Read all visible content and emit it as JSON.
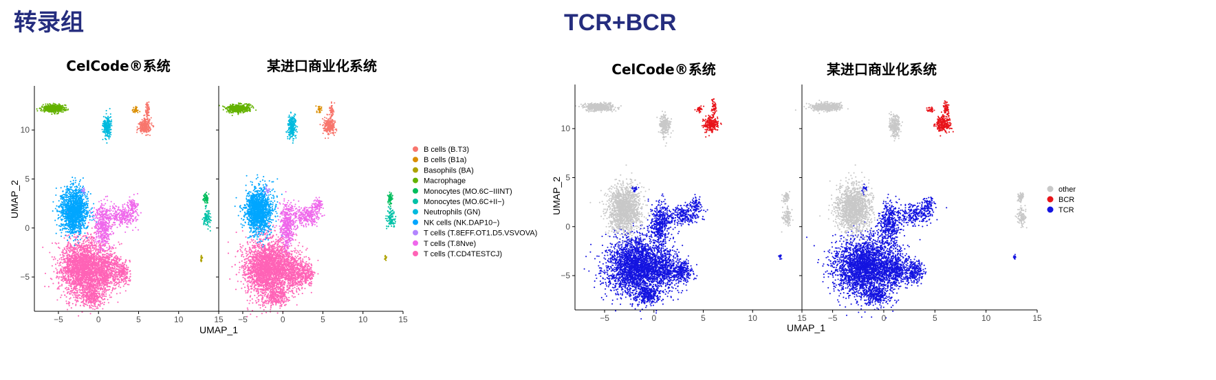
{
  "page": {
    "left_heading": "转录组",
    "right_heading": "TCR+BCR"
  },
  "colors": {
    "heading": "#252D7E",
    "axis": "#000000",
    "tick_label": "#4D4D4D",
    "cell_types": [
      "#F8766D",
      "#DB8E00",
      "#AEA200",
      "#64B200",
      "#00BD5C",
      "#00C1A7",
      "#00BADE",
      "#00A6FF",
      "#B385FF",
      "#EF67EB",
      "#FF63B6"
    ],
    "receptor": [
      "#C8C8C8",
      "#E8141A",
      "#1414E0"
    ]
  },
  "chart_data": [
    {
      "type": "scatter",
      "panel": "transcriptome",
      "titles": [
        "CelCode®系统",
        "某进口商业化系统"
      ],
      "xlabel": "UMAP_1",
      "ylabel": "UMAP_2",
      "xlim": [
        -8,
        15
      ],
      "ylim": [
        -8.5,
        14.5
      ],
      "xticks": [
        -5,
        0,
        5,
        10,
        15
      ],
      "yticks": [
        -5,
        0,
        5,
        10
      ],
      "legend_position": "right",
      "legend": [
        "B cells (B.T3)",
        "B cells (B1a)",
        "Basophils (BA)",
        "Macrophage",
        "Monocytes (MO.6C−IIINT)",
        "Monocytes (MO.6C+II−)",
        "Neutrophils (GN)",
        "NK cells (NK.DAP10−)",
        "T cells (T.8EFF.OT1.D5.VSVOVA)",
        "T cells (T.8Nve)",
        "T cells (T.CD4TESTCJ)"
      ],
      "clusters": [
        {
          "category": 10,
          "cx": -1.8,
          "cy": -4.1,
          "rx": 2.7,
          "ry": 2.7,
          "n": 2600
        },
        {
          "category": 10,
          "cx": 1.2,
          "cy": -4.4,
          "rx": 1.6,
          "ry": 1.8,
          "n": 500
        },
        {
          "category": 10,
          "cx": -0.7,
          "cy": -7.0,
          "rx": 1.2,
          "ry": 0.9,
          "n": 260
        },
        {
          "category": 10,
          "cx": 3.0,
          "cy": -4.6,
          "rx": 0.9,
          "ry": 1.0,
          "n": 200
        },
        {
          "category": 7,
          "cx": -3.0,
          "cy": 1.8,
          "rx": 1.5,
          "ry": 2.1,
          "n": 1500
        },
        {
          "category": 9,
          "cx": 0.6,
          "cy": 0.2,
          "rx": 0.9,
          "ry": 2.0,
          "n": 430
        },
        {
          "category": 9,
          "cx": 3.0,
          "cy": 1.2,
          "rx": 1.6,
          "ry": 0.9,
          "n": 260
        },
        {
          "category": 9,
          "cx": 4.3,
          "cy": 2.3,
          "rx": 0.6,
          "ry": 0.7,
          "n": 80
        },
        {
          "category": 3,
          "cx": -5.6,
          "cy": 12.2,
          "rx": 1.3,
          "ry": 0.35,
          "n": 500
        },
        {
          "category": 6,
          "cx": 1.1,
          "cy": 10.3,
          "rx": 0.45,
          "ry": 1.0,
          "n": 240
        },
        {
          "category": 0,
          "cx": 5.8,
          "cy": 10.4,
          "rx": 0.65,
          "ry": 0.7,
          "n": 250
        },
        {
          "category": 0,
          "cx": 6.1,
          "cy": 12.0,
          "rx": 0.25,
          "ry": 0.8,
          "n": 60
        },
        {
          "category": 1,
          "cx": 4.6,
          "cy": 12.0,
          "rx": 0.35,
          "ry": 0.35,
          "n": 30
        },
        {
          "category": 4,
          "cx": 13.4,
          "cy": 3.0,
          "rx": 0.3,
          "ry": 0.5,
          "n": 60
        },
        {
          "category": 5,
          "cx": 13.5,
          "cy": 1.0,
          "rx": 0.4,
          "ry": 0.9,
          "n": 100
        },
        {
          "category": 2,
          "cx": 12.8,
          "cy": -3.1,
          "rx": 0.12,
          "ry": 0.25,
          "n": 15
        },
        {
          "category": 8,
          "cx": -1.9,
          "cy": 3.8,
          "rx": 0.25,
          "ry": 0.3,
          "n": 20
        }
      ]
    },
    {
      "type": "scatter",
      "panel": "receptor",
      "titles": [
        "CelCode®系统",
        "某进口商业化系统"
      ],
      "xlabel": "UMAP_1",
      "ylabel": "UMAP_2",
      "xlim": [
        -8,
        15
      ],
      "ylim": [
        -8.5,
        14.5
      ],
      "xticks": [
        -5,
        0,
        5,
        10,
        15
      ],
      "yticks": [
        -5,
        0,
        5,
        10
      ],
      "legend_position": "right",
      "legend": [
        "other",
        "BCR",
        "TCR"
      ],
      "clusters": [
        {
          "category": 2,
          "cx": -1.8,
          "cy": -4.1,
          "rx": 2.7,
          "ry": 2.7,
          "n": 2600
        },
        {
          "category": 2,
          "cx": 1.2,
          "cy": -4.4,
          "rx": 1.6,
          "ry": 1.8,
          "n": 500
        },
        {
          "category": 2,
          "cx": -0.7,
          "cy": -7.0,
          "rx": 1.2,
          "ry": 0.9,
          "n": 260
        },
        {
          "category": 2,
          "cx": 3.0,
          "cy": -4.6,
          "rx": 0.9,
          "ry": 1.0,
          "n": 200
        },
        {
          "category": 0,
          "cx": -3.0,
          "cy": 1.8,
          "rx": 1.5,
          "ry": 2.1,
          "n": 1500
        },
        {
          "category": 2,
          "cx": 0.6,
          "cy": 0.2,
          "rx": 0.9,
          "ry": 2.0,
          "n": 430
        },
        {
          "category": 2,
          "cx": 3.0,
          "cy": 1.2,
          "rx": 1.6,
          "ry": 0.9,
          "n": 260
        },
        {
          "category": 2,
          "cx": 4.3,
          "cy": 2.3,
          "rx": 0.6,
          "ry": 0.7,
          "n": 80
        },
        {
          "category": 0,
          "cx": -5.6,
          "cy": 12.2,
          "rx": 1.3,
          "ry": 0.35,
          "n": 500
        },
        {
          "category": 0,
          "cx": 1.1,
          "cy": 10.3,
          "rx": 0.45,
          "ry": 1.0,
          "n": 240
        },
        {
          "category": 1,
          "cx": 5.8,
          "cy": 10.4,
          "rx": 0.65,
          "ry": 0.7,
          "n": 250
        },
        {
          "category": 1,
          "cx": 6.1,
          "cy": 12.0,
          "rx": 0.25,
          "ry": 0.8,
          "n": 60
        },
        {
          "category": 1,
          "cx": 4.6,
          "cy": 12.0,
          "rx": 0.35,
          "ry": 0.35,
          "n": 30
        },
        {
          "category": 0,
          "cx": 13.4,
          "cy": 3.0,
          "rx": 0.3,
          "ry": 0.5,
          "n": 60
        },
        {
          "category": 0,
          "cx": 13.5,
          "cy": 1.0,
          "rx": 0.4,
          "ry": 0.9,
          "n": 100
        },
        {
          "category": 2,
          "cx": 12.8,
          "cy": -3.1,
          "rx": 0.12,
          "ry": 0.25,
          "n": 15
        },
        {
          "category": 2,
          "cx": -1.9,
          "cy": 3.8,
          "rx": 0.25,
          "ry": 0.3,
          "n": 20
        }
      ]
    }
  ]
}
